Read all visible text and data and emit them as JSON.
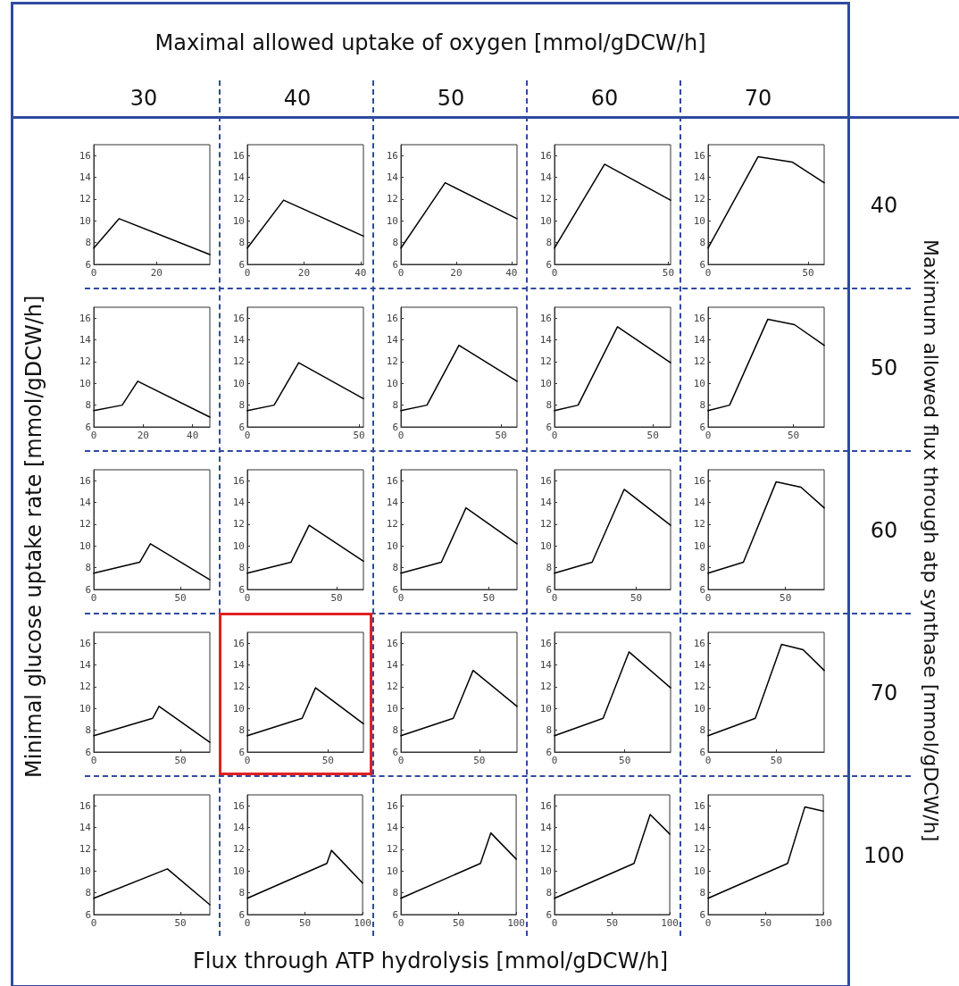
{
  "chart_data": [
    {
      "type": "line",
      "title": "30",
      "x": [
        0,
        8.1,
        37
      ],
      "values": [
        7.5,
        10.2,
        6.9
      ],
      "color": "#000000",
      "xlim": [
        0,
        37
      ],
      "xticks": [
        0,
        20
      ],
      "ylim": [
        6,
        17
      ],
      "yticks": [
        6,
        8,
        10,
        12,
        14,
        16
      ]
    },
    {
      "type": "line",
      "title": "40",
      "x": [
        0,
        12.8,
        41
      ],
      "values": [
        7.5,
        11.9,
        8.6
      ],
      "color": "#000000",
      "xlim": [
        0,
        41
      ],
      "xticks": [
        0,
        20,
        40
      ],
      "ylim": [
        6,
        17
      ],
      "yticks": [
        6,
        8,
        10,
        12,
        14,
        16
      ]
    },
    {
      "type": "line",
      "title": "50",
      "x": [
        0,
        16,
        42
      ],
      "values": [
        7.5,
        13.5,
        10.2
      ],
      "color": "#000000",
      "xlim": [
        0,
        42
      ],
      "xticks": [
        0,
        20,
        40
      ],
      "ylim": [
        6,
        17
      ],
      "yticks": [
        6,
        8,
        10,
        12,
        14,
        16
      ]
    },
    {
      "type": "line",
      "title": "60",
      "x": [
        0,
        22,
        51
      ],
      "values": [
        7.5,
        15.2,
        11.9
      ],
      "color": "#000000",
      "xlim": [
        0,
        51
      ],
      "xticks": [
        0,
        50
      ],
      "ylim": [
        6,
        17
      ],
      "yticks": [
        6,
        8,
        10,
        12,
        14,
        16
      ]
    },
    {
      "type": "line",
      "title": "70",
      "y2label": "40",
      "x": [
        0,
        25,
        42,
        58
      ],
      "values": [
        7.5,
        15.9,
        15.4,
        13.5
      ],
      "color": "#000000",
      "xlim": [
        0,
        58
      ],
      "xticks": [
        0,
        50
      ],
      "ylim": [
        6,
        17
      ],
      "yticks": [
        6,
        8,
        10,
        12,
        14,
        16
      ]
    },
    {
      "type": "line",
      "x": [
        0,
        11.5,
        17.8,
        47
      ],
      "values": [
        7.5,
        8,
        10.2,
        6.9
      ],
      "color": "#000000",
      "xlim": [
        0,
        47
      ],
      "xticks": [
        0,
        20,
        40
      ],
      "ylim": [
        6,
        17
      ],
      "yticks": [
        6,
        8,
        10,
        12,
        14,
        16
      ]
    },
    {
      "type": "line",
      "x": [
        0,
        12,
        23,
        52
      ],
      "values": [
        7.5,
        8,
        11.9,
        8.6
      ],
      "color": "#000000",
      "xlim": [
        0,
        52
      ],
      "xticks": [
        0,
        50
      ],
      "ylim": [
        6,
        17
      ],
      "yticks": [
        6,
        8,
        10,
        12,
        14,
        16
      ]
    },
    {
      "type": "line",
      "x": [
        0,
        13,
        29,
        58
      ],
      "values": [
        7.5,
        8,
        13.5,
        10.2
      ],
      "color": "#000000",
      "xlim": [
        0,
        58
      ],
      "xticks": [
        0,
        50
      ],
      "ylim": [
        6,
        17
      ],
      "yticks": [
        6,
        8,
        10,
        12,
        14,
        16
      ]
    },
    {
      "type": "line",
      "x": [
        0,
        12,
        32,
        59
      ],
      "values": [
        7.5,
        8,
        15.2,
        11.9
      ],
      "color": "#000000",
      "xlim": [
        0,
        59
      ],
      "xticks": [
        0,
        50
      ],
      "ylim": [
        6,
        17
      ],
      "yticks": [
        6,
        8,
        10,
        12,
        14,
        16
      ]
    },
    {
      "type": "line",
      "y2label": "50",
      "x": [
        0,
        12.6,
        35,
        50.6,
        68
      ],
      "values": [
        7.5,
        8,
        15.9,
        15.4,
        13.5
      ],
      "color": "#000000",
      "xlim": [
        0,
        68
      ],
      "xticks": [
        0,
        50
      ],
      "ylim": [
        6,
        17
      ],
      "yticks": [
        6,
        8,
        10,
        12,
        14,
        16
      ]
    },
    {
      "type": "line",
      "x": [
        0,
        26.5,
        32.7,
        67
      ],
      "values": [
        7.5,
        8.5,
        10.2,
        6.9
      ],
      "color": "#000000",
      "xlim": [
        0,
        67
      ],
      "xticks": [
        0,
        50
      ],
      "ylim": [
        6,
        17
      ],
      "yticks": [
        6,
        8,
        10,
        12,
        14,
        16
      ]
    },
    {
      "type": "line",
      "x": [
        0,
        24.4,
        34.6,
        65
      ],
      "values": [
        7.5,
        8.5,
        11.9,
        8.6
      ],
      "color": "#000000",
      "xlim": [
        0,
        65
      ],
      "xticks": [
        0,
        50
      ],
      "ylim": [
        6,
        17
      ],
      "yticks": [
        6,
        8,
        10,
        12,
        14,
        16
      ]
    },
    {
      "type": "line",
      "x": [
        0,
        23,
        37,
        66
      ],
      "values": [
        7.5,
        8.5,
        13.5,
        10.2
      ],
      "color": "#000000",
      "xlim": [
        0,
        66
      ],
      "xticks": [
        0,
        50
      ],
      "ylim": [
        6,
        17
      ],
      "yticks": [
        6,
        8,
        10,
        12,
        14,
        16
      ]
    },
    {
      "type": "line",
      "x": [
        0,
        23,
        42.6,
        71
      ],
      "values": [
        7.5,
        8.5,
        15.2,
        11.9
      ],
      "color": "#000000",
      "xlim": [
        0,
        71
      ],
      "xticks": [
        0,
        50
      ],
      "ylim": [
        6,
        17
      ],
      "yticks": [
        6,
        8,
        10,
        12,
        14,
        16
      ]
    },
    {
      "type": "line",
      "y2label": "60",
      "x": [
        0,
        22.8,
        44,
        60,
        75
      ],
      "values": [
        7.5,
        8.5,
        15.9,
        15.4,
        13.5
      ],
      "color": "#000000",
      "xlim": [
        0,
        75
      ],
      "xticks": [
        0,
        50
      ],
      "ylim": [
        6,
        17
      ],
      "yticks": [
        6,
        8,
        10,
        12,
        14,
        16
      ]
    },
    {
      "type": "line",
      "x": [
        0,
        34,
        37.7,
        67
      ],
      "values": [
        7.5,
        9.1,
        10.2,
        6.9
      ],
      "color": "#000000",
      "xlim": [
        0,
        67
      ],
      "xticks": [
        0,
        50
      ],
      "ylim": [
        6,
        17
      ],
      "yticks": [
        6,
        8,
        10,
        12,
        14,
        16
      ]
    },
    {
      "type": "line",
      "x": [
        0,
        34,
        42.3,
        72
      ],
      "values": [
        7.5,
        9.1,
        11.9,
        8.6
      ],
      "color": "#000000",
      "xlim": [
        0,
        72
      ],
      "xticks": [
        0,
        50
      ],
      "ylim": [
        6,
        17
      ],
      "yticks": [
        6,
        8,
        10,
        12,
        14,
        16
      ]
    },
    {
      "type": "line",
      "x": [
        0,
        33.4,
        46,
        74
      ],
      "values": [
        7.5,
        9.1,
        13.5,
        10.2
      ],
      "color": "#000000",
      "xlim": [
        0,
        74
      ],
      "xticks": [
        0,
        50
      ],
      "ylim": [
        6,
        17
      ],
      "yticks": [
        6,
        8,
        10,
        12,
        14,
        16
      ]
    },
    {
      "type": "line",
      "x": [
        0,
        34.6,
        53,
        82.6
      ],
      "values": [
        7.5,
        9.1,
        15.2,
        11.9
      ],
      "color": "#000000",
      "xlim": [
        0,
        82.6
      ],
      "xticks": [
        0,
        50
      ],
      "ylim": [
        6,
        17
      ],
      "yticks": [
        6,
        8,
        10,
        12,
        14,
        16
      ]
    },
    {
      "type": "line",
      "y2label": "70",
      "x": [
        0,
        34.6,
        53.8,
        69.6,
        85
      ],
      "values": [
        7.5,
        9.1,
        15.9,
        15.4,
        13.5
      ],
      "color": "#000000",
      "xlim": [
        0,
        85
      ],
      "xticks": [
        0,
        50
      ],
      "ylim": [
        6,
        17
      ],
      "yticks": [
        6,
        8,
        10,
        12,
        14,
        16
      ]
    },
    {
      "type": "line",
      "x": [
        0,
        42.5,
        67
      ],
      "values": [
        7.5,
        10.2,
        6.9
      ],
      "color": "#000000",
      "xlim": [
        0,
        67
      ],
      "xticks": [
        0,
        50
      ],
      "ylim": [
        6,
        17
      ],
      "yticks": [
        6,
        8,
        10,
        12,
        14,
        16
      ]
    },
    {
      "type": "line",
      "x": [
        0,
        69,
        73,
        100
      ],
      "values": [
        7.5,
        10.7,
        11.9,
        8.9
      ],
      "color": "#000000",
      "xlim": [
        0,
        100
      ],
      "xticks": [
        0,
        50,
        100
      ],
      "ylim": [
        6,
        17
      ],
      "yticks": [
        6,
        8,
        10,
        12,
        14,
        16
      ]
    },
    {
      "type": "line",
      "x": [
        0,
        69,
        78,
        100
      ],
      "values": [
        7.5,
        10.7,
        13.5,
        11.1
      ],
      "color": "#000000",
      "xlim": [
        0,
        100
      ],
      "xticks": [
        0,
        50,
        100
      ],
      "ylim": [
        6,
        17
      ],
      "yticks": [
        6,
        8,
        10,
        12,
        14,
        16
      ]
    },
    {
      "type": "line",
      "x": [
        0,
        69,
        83,
        100
      ],
      "values": [
        7.5,
        10.7,
        15.2,
        13.4
      ],
      "color": "#000000",
      "xlim": [
        0,
        100
      ],
      "xticks": [
        0,
        50,
        100
      ],
      "ylim": [
        6,
        17
      ],
      "yticks": [
        6,
        8,
        10,
        12,
        14,
        16
      ]
    },
    {
      "type": "line",
      "y2label": "100",
      "x": [
        0,
        69,
        84,
        100
      ],
      "values": [
        7.5,
        10.7,
        15.9,
        15.5
      ],
      "color": "#000000",
      "xlim": [
        0,
        100
      ],
      "xticks": [
        0,
        50,
        100
      ],
      "ylim": [
        6,
        17
      ],
      "yticks": [
        6,
        8,
        10,
        12,
        14,
        16
      ]
    },
    {
      "type": "other",
      "title": "Maximal allowed uptake of oxygen [mmol/gDCW/h]",
      "xlabel": "Flux through ATP hydrolysis [mmol/gDCW/h]",
      "ylabel": "Minimal glucose uptake rate [mmol/gDCW/h]",
      "y2label": "Maximum allowed flux through atp synthase  [mmol/gDCW/h]"
    }
  ]
}
